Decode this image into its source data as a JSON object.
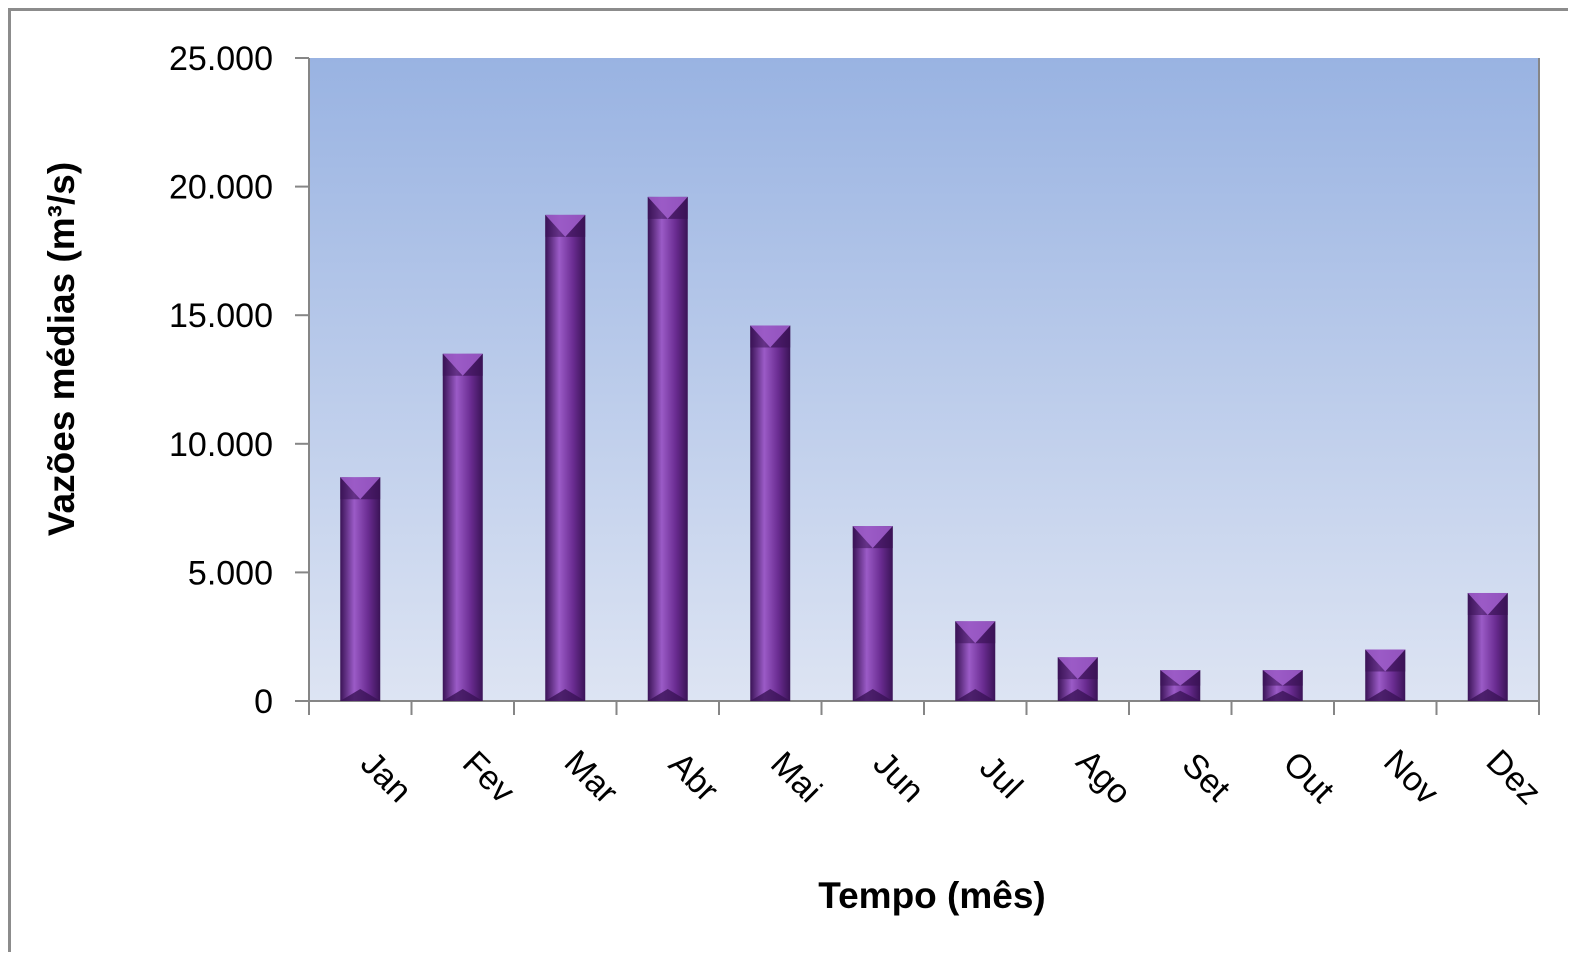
{
  "chart_data": {
    "type": "bar",
    "title": "",
    "xlabel": "Tempo (mês)",
    "ylabel": "Vazões médias (m³/s)",
    "categories": [
      "Jan",
      "Fev",
      "Mar",
      "Abr",
      "Mai",
      "Jun",
      "Jul",
      "Ago",
      "Set",
      "Out",
      "Nov",
      "Dez"
    ],
    "values": [
      8700,
      13500,
      18900,
      19600,
      14600,
      6800,
      3100,
      1700,
      1200,
      1200,
      2000,
      4200
    ],
    "ylim": [
      0,
      25000
    ],
    "yticks": [
      0,
      5000,
      10000,
      15000,
      20000,
      25000
    ],
    "ytick_labels": [
      "0",
      "5.000",
      "10.000",
      "15.000",
      "20.000",
      "25.000"
    ],
    "grid": false,
    "legend": "none",
    "colors": {
      "bar": "#6a2c91",
      "bar_light": "#9b5bc7",
      "bar_dark": "#3a1356",
      "plot_bg_top": "#99b3e2",
      "plot_bg_bottom": "#dde4f3",
      "axis": "#868686"
    }
  }
}
